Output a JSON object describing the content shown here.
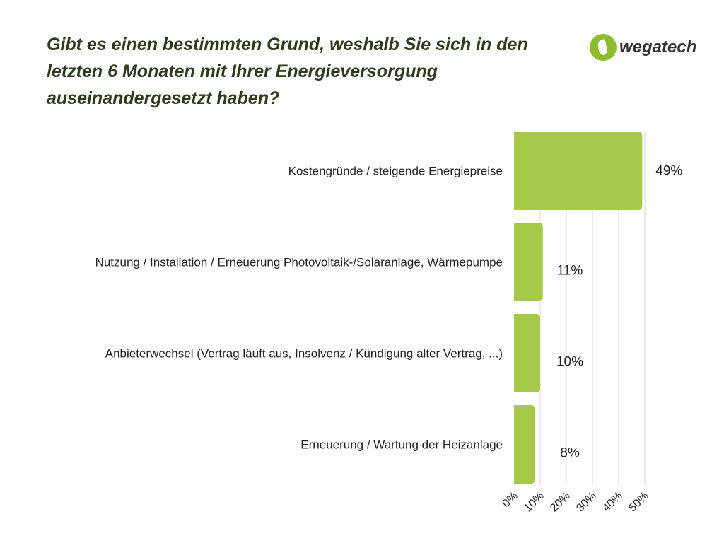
{
  "header": {
    "title_lines": [
      "Gibt es einen bestimmten Grund, weshalb Sie sich in den",
      "letzten 6 Monaten mit Ihrer Energieversorgung",
      "auseinandergesetzt haben?"
    ],
    "logo_text": "wegatech"
  },
  "colors": {
    "bar": "#a7c94a",
    "title": "#2e3a1c",
    "grid": "#d9d9d9"
  },
  "chart_data": {
    "type": "bar",
    "orientation": "horizontal",
    "categories": [
      "Kostengründe / steigende Energiepreise",
      "Nutzung / Installation / Erneuerung Photovoltaik-/Solaranlage, Wärmepumpe",
      "Anbieterwechsel (Vertrag läuft aus, Insolvenz / Kündigung alter Vertrag, ...)",
      "Erneuerung / Wartung der Heizanlage"
    ],
    "values": [
      49,
      11,
      10,
      8
    ],
    "data_labels": [
      "49%",
      "11%",
      "10%",
      "8%"
    ],
    "xlim": [
      0,
      50
    ],
    "ticks": [
      "0%",
      "10%",
      "20%",
      "30%",
      "40%",
      "50%"
    ],
    "grid": true
  }
}
